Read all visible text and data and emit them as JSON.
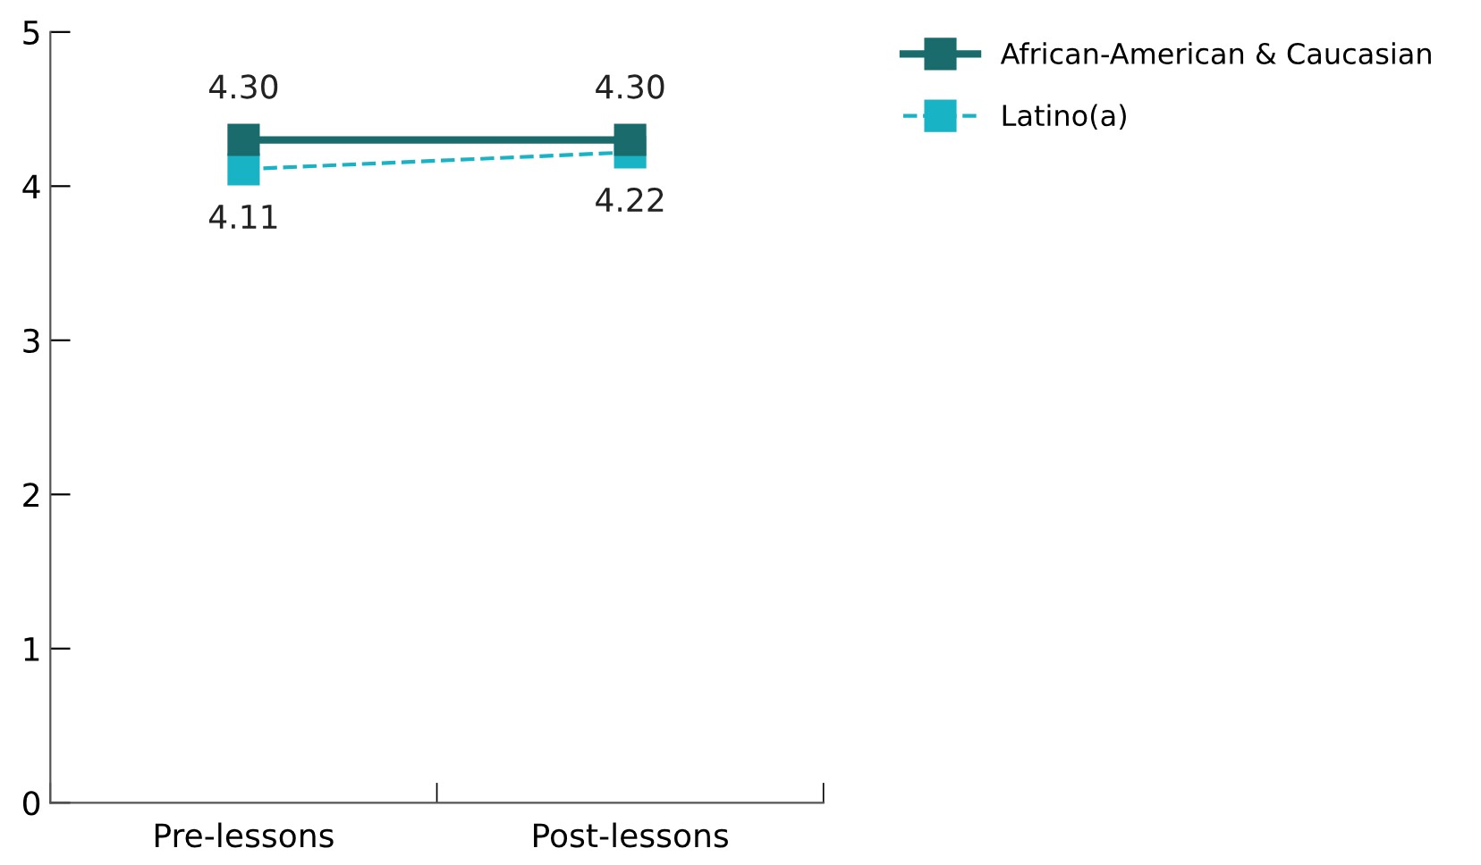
{
  "chart_data": {
    "type": "line",
    "categories": [
      "Pre-lessons",
      "Post-lessons"
    ],
    "series": [
      {
        "name": "African-American & Caucasian",
        "color": "#1a6b6b",
        "values": [
          4.3,
          4.3
        ],
        "value_labels": [
          "4.30",
          "4.30"
        ],
        "line_style": "solid"
      },
      {
        "name": "Latino(a)",
        "color": "#19b3c6",
        "values": [
          4.11,
          4.22
        ],
        "value_labels": [
          "4.11",
          "4.22"
        ],
        "line_style": "dashed"
      }
    ],
    "ylim": [
      0,
      5
    ],
    "yticks": [
      0,
      1,
      2,
      3,
      4,
      5
    ],
    "marker": "square",
    "legend": "top right",
    "grid": false
  }
}
